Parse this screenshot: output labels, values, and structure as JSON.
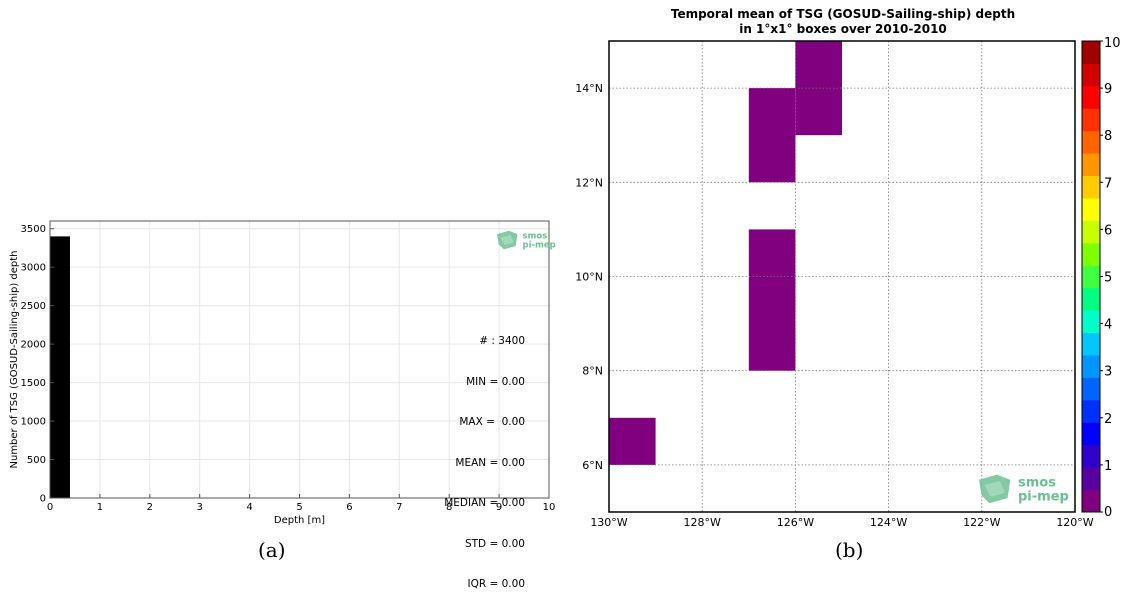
{
  "captions": {
    "a": "(a)",
    "b": "(b)"
  },
  "logo": {
    "text_top": "smos",
    "text_bottom": "pi-mep",
    "color": "#6dbf93"
  },
  "stats": [
    "# : 3400",
    "MIN = 0.00",
    "MAX =  0.00",
    "MEAN = 0.00",
    "MEDIAN = 0.00",
    "STD = 0.00",
    "IQR = 0.00"
  ],
  "chart_data": [
    {
      "type": "bar",
      "xlabel": "Depth [m]",
      "ylabel": "Number of TSG (GOSUD-Sailing-ship) depth",
      "xlim": [
        0,
        10
      ],
      "ylim": [
        0,
        3600
      ],
      "xticks": [
        0,
        1,
        2,
        3,
        4,
        5,
        6,
        7,
        8,
        9,
        10
      ],
      "yticks": [
        0,
        500,
        1000,
        1500,
        2000,
        2500,
        3000,
        3500
      ],
      "grid": true,
      "bins": [
        {
          "x0": 0.0,
          "x1": 0.4,
          "value": 3400
        }
      ],
      "bar_color": "#000000"
    },
    {
      "type": "heatmap",
      "title": "Temporal mean of TSG (GOSUD-Sailing-ship) depth",
      "subtitle": "in 1°x1° boxes over 2010-2010",
      "xlim": [
        -130,
        -120
      ],
      "ylim": [
        5,
        15
      ],
      "xticks": [
        {
          "v": -130,
          "label": "130°W"
        },
        {
          "v": -128,
          "label": "128°W"
        },
        {
          "v": -126,
          "label": "126°W"
        },
        {
          "v": -124,
          "label": "124°W"
        },
        {
          "v": -122,
          "label": "122°W"
        },
        {
          "v": -120,
          "label": "120°W"
        }
      ],
      "yticks": [
        {
          "v": 6,
          "label": "6°N"
        },
        {
          "v": 8,
          "label": "8°N"
        },
        {
          "v": 10,
          "label": "10°N"
        },
        {
          "v": 12,
          "label": "12°N"
        },
        {
          "v": 14,
          "label": "14°N"
        }
      ],
      "grid": true,
      "cells": [
        {
          "lon0": -130,
          "lon1": -129,
          "lat0": 6,
          "lat1": 7,
          "value": 0
        },
        {
          "lon0": -127,
          "lon1": -126,
          "lat0": 8,
          "lat1": 11,
          "value": 0
        },
        {
          "lon0": -127,
          "lon1": -126,
          "lat0": 12,
          "lat1": 14,
          "value": 0
        },
        {
          "lon0": -126,
          "lon1": -125,
          "lat0": 13,
          "lat1": 15,
          "value": 0
        }
      ],
      "colorbar": {
        "min": 0,
        "max": 10,
        "ticks": [
          0,
          1,
          2,
          3,
          4,
          5,
          6,
          7,
          8,
          9,
          10
        ],
        "colors": [
          "#800080",
          "#5a00a0",
          "#3200cc",
          "#0000ff",
          "#0030ff",
          "#0064ff",
          "#0096ff",
          "#00c8ff",
          "#00ffc8",
          "#00ff80",
          "#40ff40",
          "#80ff00",
          "#c8ff00",
          "#ffff00",
          "#ffcc00",
          "#ff9600",
          "#ff6400",
          "#ff3200",
          "#ff0000",
          "#d20000",
          "#a00000"
        ]
      }
    }
  ]
}
